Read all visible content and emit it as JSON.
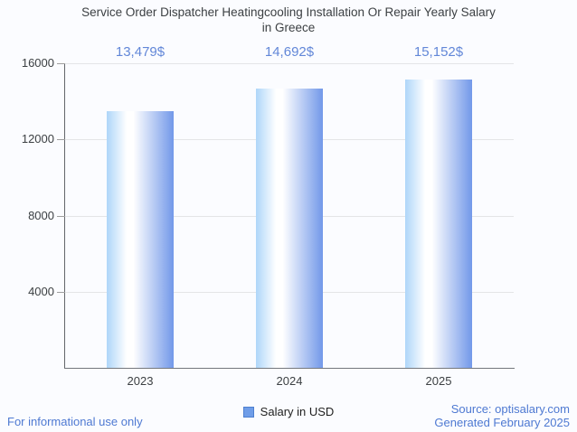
{
  "title": {
    "line1": "Service Order Dispatcher Heatingcooling Installation Or Repair Yearly Salary",
    "line2": "in Greece"
  },
  "chart_data": {
    "type": "bar",
    "categories": [
      "2023",
      "2024",
      "2025"
    ],
    "series": [
      {
        "name": "Salary in USD",
        "values": [
          13479,
          14692,
          15152
        ]
      }
    ],
    "value_labels": [
      "13,479$",
      "14,692$",
      "15,152$"
    ],
    "ylim": [
      0,
      16000
    ],
    "yticks": [
      4000,
      8000,
      12000,
      16000
    ],
    "grid": true,
    "legend_position": "bottom",
    "bar_gradient": [
      "#aed6f9",
      "#ffffff",
      "#7298e9"
    ],
    "value_label_color": "#6287d8",
    "gridline_color": "#e4e5e7",
    "axis_color": "#63666b"
  },
  "legend": {
    "label": "Salary in USD",
    "swatch_fill": "#6f9de8",
    "swatch_border": "#4d7fd0"
  },
  "footer": {
    "disclaimer": "For informational use only",
    "source": "Source: optisalary.com",
    "generated": "Generated February 2025",
    "link_color": "#4e79d2"
  }
}
